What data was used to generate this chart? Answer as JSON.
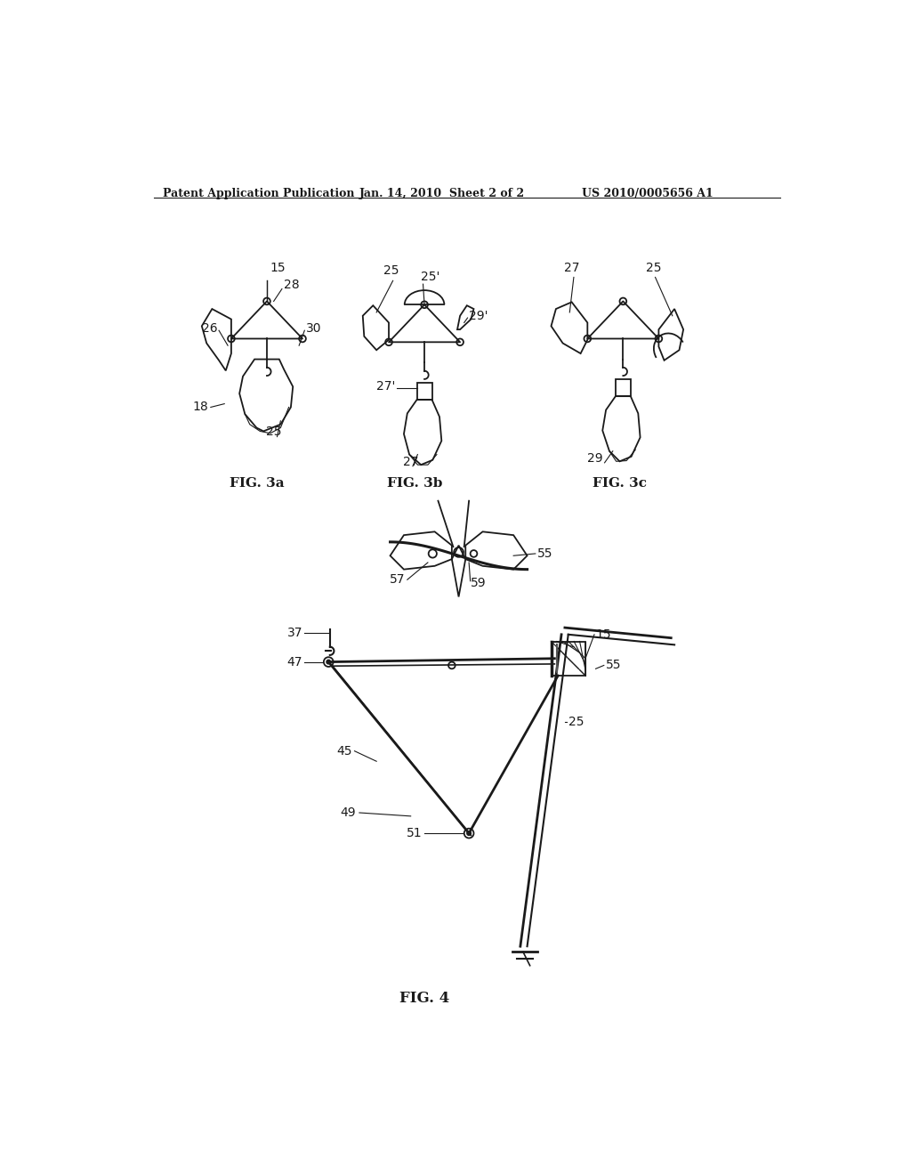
{
  "bg_color": "#ffffff",
  "line_color": "#1a1a1a",
  "header_left": "Patent Application Publication",
  "header_center": "Jan. 14, 2010  Sheet 2 of 2",
  "header_right": "US 2010/0005656 A1",
  "fig3a_label": "FIG. 3a",
  "fig3b_label": "FIG. 3b",
  "fig3c_label": "FIG. 3c",
  "fig4_label": "FIG. 4"
}
